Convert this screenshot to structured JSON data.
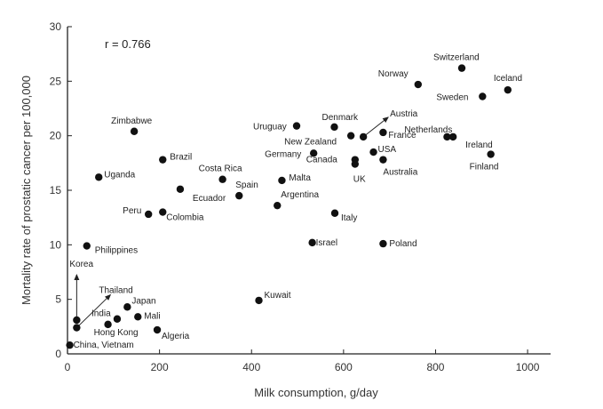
{
  "chart_data": {
    "type": "scatter",
    "title": "",
    "xlabel": "Milk consumption, g/day",
    "ylabel": "Mortality rate of prostatic cancer per 100,000",
    "xlim": [
      0,
      1050
    ],
    "ylim": [
      0,
      30
    ],
    "xticks": [
      0,
      200,
      400,
      600,
      800,
      1000
    ],
    "yticks": [
      0,
      5,
      10,
      15,
      20,
      25,
      30
    ],
    "grid": false,
    "annotation": "r = 0.766",
    "point_color": "#111111",
    "points": [
      {
        "label": "Switzerland",
        "x": 857,
        "y": 26.2
      },
      {
        "label": "Iceland",
        "x": 957,
        "y": 24.2
      },
      {
        "label": "Norway",
        "x": 762,
        "y": 24.7
      },
      {
        "label": "Sweden",
        "x": 902,
        "y": 23.6
      },
      {
        "label": "Austria",
        "x": 643,
        "y": 19.9
      },
      {
        "label": "Netherlands",
        "x": 825,
        "y": 19.9
      },
      {
        "label": "Ireland",
        "x": 838,
        "y": 19.9
      },
      {
        "label": "Denmark",
        "x": 580,
        "y": 20.8
      },
      {
        "label": "Uruguay",
        "x": 498,
        "y": 20.9
      },
      {
        "label": "New Zealand",
        "x": 616,
        "y": 20.0
      },
      {
        "label": "France",
        "x": 686,
        "y": 20.3
      },
      {
        "label": "Germany",
        "x": 535,
        "y": 18.4
      },
      {
        "label": "Canada",
        "x": 625,
        "y": 17.8
      },
      {
        "label": "USA",
        "x": 665,
        "y": 18.5
      },
      {
        "label": "UK",
        "x": 625,
        "y": 17.4
      },
      {
        "label": "Australia",
        "x": 686,
        "y": 17.8
      },
      {
        "label": "Finland",
        "x": 920,
        "y": 18.3
      },
      {
        "label": "Zimbabwe",
        "x": 145,
        "y": 20.4
      },
      {
        "label": "Brazil",
        "x": 207,
        "y": 17.8
      },
      {
        "label": "Costa Rica",
        "x": 337,
        "y": 16.0
      },
      {
        "label": "Uganda",
        "x": 68,
        "y": 16.2
      },
      {
        "label": "Malta",
        "x": 466,
        "y": 15.9
      },
      {
        "label": "Spain",
        "x": 373,
        "y": 14.5
      },
      {
        "label": "Ecuador",
        "x": 245,
        "y": 15.1
      },
      {
        "label": "Argentina",
        "x": 456,
        "y": 13.6
      },
      {
        "label": "Peru",
        "x": 176,
        "y": 12.8
      },
      {
        "label": "Colombia",
        "x": 207,
        "y": 13.0
      },
      {
        "label": "Italy",
        "x": 581,
        "y": 12.9
      },
      {
        "label": "Israel",
        "x": 532,
        "y": 10.2
      },
      {
        "label": "Poland",
        "x": 686,
        "y": 10.1
      },
      {
        "label": "Philippines",
        "x": 42,
        "y": 9.9
      },
      {
        "label": "Kuwait",
        "x": 416,
        "y": 4.9
      },
      {
        "label": "Japan",
        "x": 130,
        "y": 4.3
      },
      {
        "label": "Mali",
        "x": 153,
        "y": 3.4
      },
      {
        "label": "India",
        "x": 108,
        "y": 3.2
      },
      {
        "label": "Hong Kong",
        "x": 88,
        "y": 2.7
      },
      {
        "label": "Korea",
        "x": 20,
        "y": 3.1
      },
      {
        "label": "Thailand",
        "x": 20,
        "y": 2.4
      },
      {
        "label": "Algeria",
        "x": 195,
        "y": 2.2
      },
      {
        "label": "China, Vietnam",
        "x": 5,
        "y": 0.8
      }
    ]
  }
}
